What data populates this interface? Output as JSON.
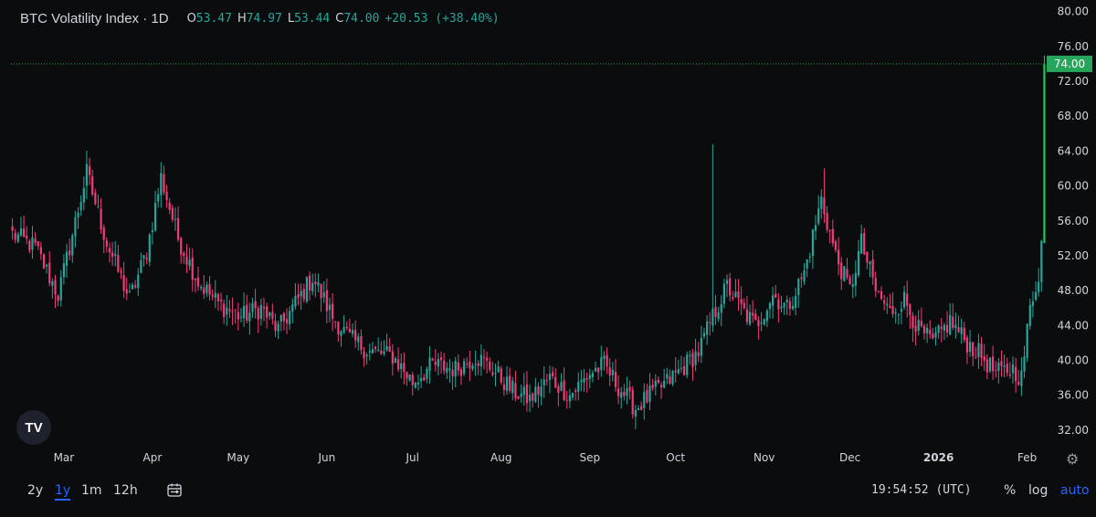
{
  "header": {
    "title": "BTC Volatility Index · 1D",
    "ohlc": {
      "o_label": "O",
      "o_value": "53.47",
      "h_label": "H",
      "h_value": "74.97",
      "l_label": "L",
      "l_value": "53.44",
      "c_label": "C",
      "c_value": "74.00",
      "change": "+20.53 (+38.40%)"
    }
  },
  "colors": {
    "background": "#0b0c0e",
    "up": "#26a69a",
    "up_bright": "#22c55e",
    "down": "#ef5350",
    "down_pink": "#f23c7a",
    "axis_text": "#d1d4dc",
    "accent": "#2962ff",
    "price_tag": "#26a65b"
  },
  "chart_data": {
    "type": "candlestick",
    "title": "BTC Volatility Index · 1D",
    "y_axis_ticks": [
      "32.00",
      "36.00",
      "40.00",
      "44.00",
      "48.00",
      "52.00",
      "56.00",
      "60.00",
      "64.00",
      "68.00",
      "72.00",
      "76.00",
      "80.00"
    ],
    "ylim": [
      30,
      80.8
    ],
    "last_price": 74.0,
    "last_price_label": "74.00",
    "x_axis_ticks": [
      {
        "label": "Mar",
        "index": 18
      },
      {
        "label": "Apr",
        "index": 49
      },
      {
        "label": "May",
        "index": 79
      },
      {
        "label": "Jun",
        "index": 110
      },
      {
        "label": "Jul",
        "index": 140
      },
      {
        "label": "Aug",
        "index": 171
      },
      {
        "label": "Sep",
        "index": 202
      },
      {
        "label": "Oct",
        "index": 232
      },
      {
        "label": "Nov",
        "index": 263
      },
      {
        "label": "Dec",
        "index": 293
      },
      {
        "label": "2026",
        "index": 324,
        "bold": true
      },
      {
        "label": "Feb",
        "index": 355
      }
    ],
    "close_anchors": [
      [
        0,
        54.5
      ],
      [
        8,
        53.0
      ],
      [
        16,
        47.5
      ],
      [
        20,
        53.0
      ],
      [
        26,
        61.5
      ],
      [
        33,
        53.5
      ],
      [
        41,
        47.0
      ],
      [
        47,
        52.5
      ],
      [
        52,
        61.0
      ],
      [
        58,
        54.0
      ],
      [
        65,
        49.0
      ],
      [
        72,
        46.5
      ],
      [
        80,
        45.0
      ],
      [
        87,
        46.0
      ],
      [
        93,
        43.5
      ],
      [
        98,
        46.0
      ],
      [
        105,
        49.5
      ],
      [
        112,
        45.0
      ],
      [
        118,
        42.5
      ],
      [
        125,
        41.0
      ],
      [
        133,
        40.5
      ],
      [
        140,
        37.5
      ],
      [
        147,
        39.5
      ],
      [
        155,
        39.0
      ],
      [
        162,
        40.5
      ],
      [
        168,
        39.0
      ],
      [
        175,
        36.5
      ],
      [
        181,
        35.5
      ],
      [
        188,
        38.0
      ],
      [
        195,
        36.0
      ],
      [
        202,
        38.5
      ],
      [
        207,
        39.5
      ],
      [
        212,
        37.0
      ],
      [
        218,
        34.5
      ],
      [
        223,
        36.0
      ],
      [
        229,
        37.5
      ],
      [
        234,
        39.0
      ],
      [
        240,
        41.0
      ],
      [
        245,
        45.0
      ],
      [
        250,
        48.5
      ],
      [
        256,
        45.5
      ],
      [
        260,
        44.0
      ],
      [
        266,
        47.5
      ],
      [
        271,
        46.0
      ],
      [
        277,
        50.0
      ],
      [
        283,
        58.5
      ],
      [
        288,
        52.0
      ],
      [
        293,
        48.0
      ],
      [
        297,
        53.5
      ],
      [
        302,
        48.0
      ],
      [
        307,
        45.5
      ],
      [
        312,
        47.0
      ],
      [
        317,
        43.5
      ],
      [
        322,
        42.0
      ],
      [
        328,
        44.5
      ],
      [
        334,
        42.0
      ],
      [
        339,
        40.5
      ],
      [
        344,
        38.5
      ],
      [
        350,
        39.0
      ],
      [
        353,
        38.0
      ],
      [
        356,
        46.0
      ],
      [
        359,
        50.0
      ],
      [
        360,
        53.5
      ],
      [
        361,
        74.0
      ]
    ],
    "spikes": [
      {
        "index": 245,
        "high": 64.8
      },
      {
        "index": 284,
        "high": 62.0
      },
      {
        "index": 361,
        "high": 74.97
      }
    ]
  },
  "bottom_bar": {
    "ranges": [
      "2y",
      "1y",
      "1m",
      "12h"
    ],
    "active_range": "1y",
    "clock": "19:54:52 (UTC)",
    "percent": "%",
    "log": "log",
    "auto": "auto"
  },
  "logo": {
    "text": "TV",
    "icon": "tradingview-logo-icon"
  }
}
